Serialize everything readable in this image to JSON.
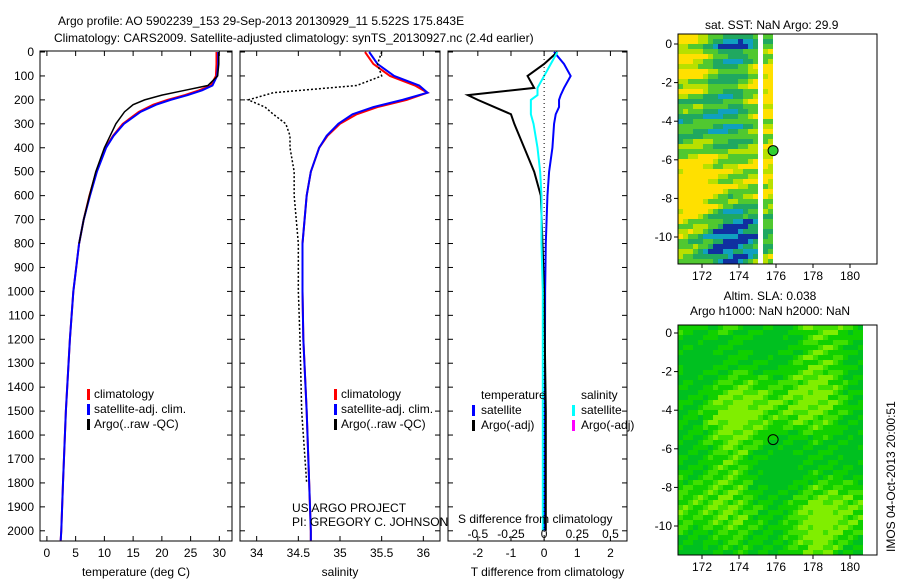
{
  "title": {
    "line1": "Argo profile: AO 5902239_153 29-Sep-2013 20130929_11 5.522S 175.843E",
    "line2": "Climatology: CARS2009. Satellite-adjusted climatology: synTS_20130927.nc (2.4d earlier)"
  },
  "colors": {
    "climatology": "#ff0000",
    "satellite": "#0000ff",
    "argo": "#000000",
    "sal_satellite": "#00ffff",
    "sal_argo": "#ff00ff"
  },
  "chart_data": [
    {
      "type": "line",
      "name": "temperature",
      "xlabel": "temperature (deg C)",
      "xlim": [
        -1.2,
        32.2
      ],
      "ylim": [
        2040,
        0
      ],
      "xticks": [
        "0",
        "5",
        "10",
        "15",
        "20",
        "25",
        "30"
      ],
      "xtick_values": [
        0,
        5,
        10,
        15,
        20,
        25,
        30
      ],
      "yticks": [
        "0",
        "100",
        "200",
        "300",
        "400",
        "500",
        "600",
        "700",
        "800",
        "900",
        "1000",
        "1100",
        "1200",
        "1300",
        "1400",
        "1500",
        "1600",
        "1700",
        "1800",
        "1900",
        "2000"
      ],
      "legend": [
        "climatology",
        "satellite-adj. clim.",
        "Argo(..raw -QC)"
      ],
      "depth": [
        0,
        50,
        100,
        140,
        160,
        180,
        200,
        220,
        250,
        300,
        350,
        400,
        500,
        600,
        700,
        800,
        1000,
        1200,
        1500,
        1800,
        2000,
        2040
      ],
      "series": [
        {
          "name": "climatology",
          "values": [
            29.5,
            29.5,
            29.4,
            28.5,
            26.5,
            24,
            21,
            18.5,
            16,
            13.2,
            11.5,
            10.2,
            8.6,
            7.4,
            6.4,
            5.6,
            4.6,
            4.0,
            3.3,
            2.8,
            2.5,
            2.4
          ]
        },
        {
          "name": "satellite-adj. clim.",
          "values": [
            29.8,
            29.8,
            29.6,
            28.8,
            27,
            24.5,
            21.5,
            19,
            16.3,
            13.4,
            11.6,
            10.3,
            8.7,
            7.5,
            6.4,
            5.6,
            4.6,
            4.0,
            3.3,
            2.8,
            2.5,
            2.4
          ]
        },
        {
          "name": "Argo",
          "values": [
            29.9,
            29.9,
            29.7,
            28,
            24,
            20,
            17,
            15,
            13.5,
            12,
            11,
            10,
            8.5,
            7.4,
            6.4,
            5.6,
            null,
            null,
            null,
            null,
            null,
            null
          ]
        }
      ]
    },
    {
      "type": "line",
      "name": "salinity",
      "xlabel": "salinity",
      "xlim": [
        33.8,
        36.2
      ],
      "xticks": [
        "34",
        "34.5",
        "35",
        "35.5",
        "36"
      ],
      "xtick_values": [
        34,
        34.5,
        35,
        35.5,
        36
      ],
      "legend": [
        "climatology",
        "satellite-adj. clim.",
        "Argo(..raw -QC)"
      ],
      "depth": [
        0,
        50,
        100,
        140,
        170,
        200,
        230,
        260,
        300,
        350,
        400,
        500,
        600,
        800,
        1000,
        1200,
        1500,
        1800,
        2000,
        2040
      ],
      "series": [
        {
          "name": "climatology",
          "values": [
            35.3,
            35.4,
            35.6,
            35.9,
            36.05,
            35.8,
            35.45,
            35.2,
            35.0,
            34.85,
            34.75,
            34.65,
            34.6,
            34.55,
            34.55,
            34.56,
            34.6,
            34.63,
            34.65,
            34.65
          ]
        },
        {
          "name": "satellite-adj. clim.",
          "values": [
            35.35,
            35.45,
            35.65,
            35.95,
            36.05,
            35.75,
            35.4,
            35.15,
            34.98,
            34.84,
            34.75,
            34.65,
            34.6,
            34.55,
            34.55,
            34.56,
            34.6,
            34.63,
            34.65,
            34.65
          ]
        },
        {
          "name": "Argo",
          "values": [
            35.5,
            35.45,
            35.5,
            35.2,
            34.2,
            33.9,
            34.1,
            34.2,
            34.35,
            34.4,
            34.4,
            34.45,
            34.45,
            34.5,
            34.5,
            34.52,
            34.54,
            34.6,
            null,
            null
          ]
        }
      ],
      "annotation": [
        "US ARGO PROJECT",
        "PI: GREGORY C. JOHNSON"
      ]
    },
    {
      "type": "line",
      "name": "difference",
      "xlabel": "T difference from climatology",
      "xlabel2": "S difference from climatology",
      "xlim": [
        -2.9,
        2.5
      ],
      "xticks": [
        "-2",
        "-1",
        "0",
        "1",
        "2"
      ],
      "xtick_values": [
        -2,
        -1,
        0,
        1,
        2
      ],
      "xticks2": [
        "-0.5",
        "-0.25",
        "0",
        "0.25",
        "0.5"
      ],
      "xtick2_values": [
        -0.5,
        -0.25,
        0,
        0.25,
        0.5
      ],
      "legend": {
        "temperature": "temperature",
        "salinity": "salinity",
        "satellite": "satellite",
        "argo": "Argo(-adj)"
      },
      "depth": [
        0,
        50,
        100,
        150,
        180,
        200,
        230,
        260,
        300,
        400,
        500,
        600,
        800,
        1000,
        1500,
        2000
      ],
      "series": [
        {
          "name": "T satellite",
          "values": [
            0.3,
            0.6,
            0.8,
            0.6,
            0.5,
            0.45,
            0.45,
            0.35,
            0.3,
            0.25,
            0.15,
            0.1,
            0.05,
            0.03,
            0.02,
            0.01
          ]
        },
        {
          "name": "T Argo(-adj)",
          "values": [
            0.4,
            0,
            -0.5,
            -0.3,
            -2.3,
            -2.0,
            -1.5,
            -1.0,
            -0.9,
            -0.6,
            -0.3,
            -0.1,
            -0.05,
            0,
            0.05,
            0.05
          ]
        },
        {
          "name": "S satellite",
          "values": [
            0.1,
            0.05,
            0,
            -0.05,
            -0.05,
            -0.1,
            -0.1,
            -0.1,
            -0.08,
            -0.05,
            -0.03,
            -0.02,
            -0.02,
            -0.01,
            -0.01,
            -0.01
          ]
        }
      ]
    }
  ],
  "map1": {
    "title": "sat. SST: NaN Argo: 29.9",
    "xticks": [
      "172",
      "174",
      "176",
      "178",
      "180"
    ],
    "yticks": [
      "0",
      "-2",
      "-4",
      "-6",
      "-8",
      "-10"
    ]
  },
  "map2": {
    "title1": "Altim. SLA: 0.038",
    "title2": "Argo h1000: NaN h2000: NaN",
    "xticks": [
      "172",
      "174",
      "176",
      "178",
      "180"
    ],
    "yticks": [
      "0",
      "-2",
      "-4",
      "-6",
      "-8",
      "-10"
    ]
  },
  "watermark": "IMOS 04-Oct-2013 20:00:51"
}
